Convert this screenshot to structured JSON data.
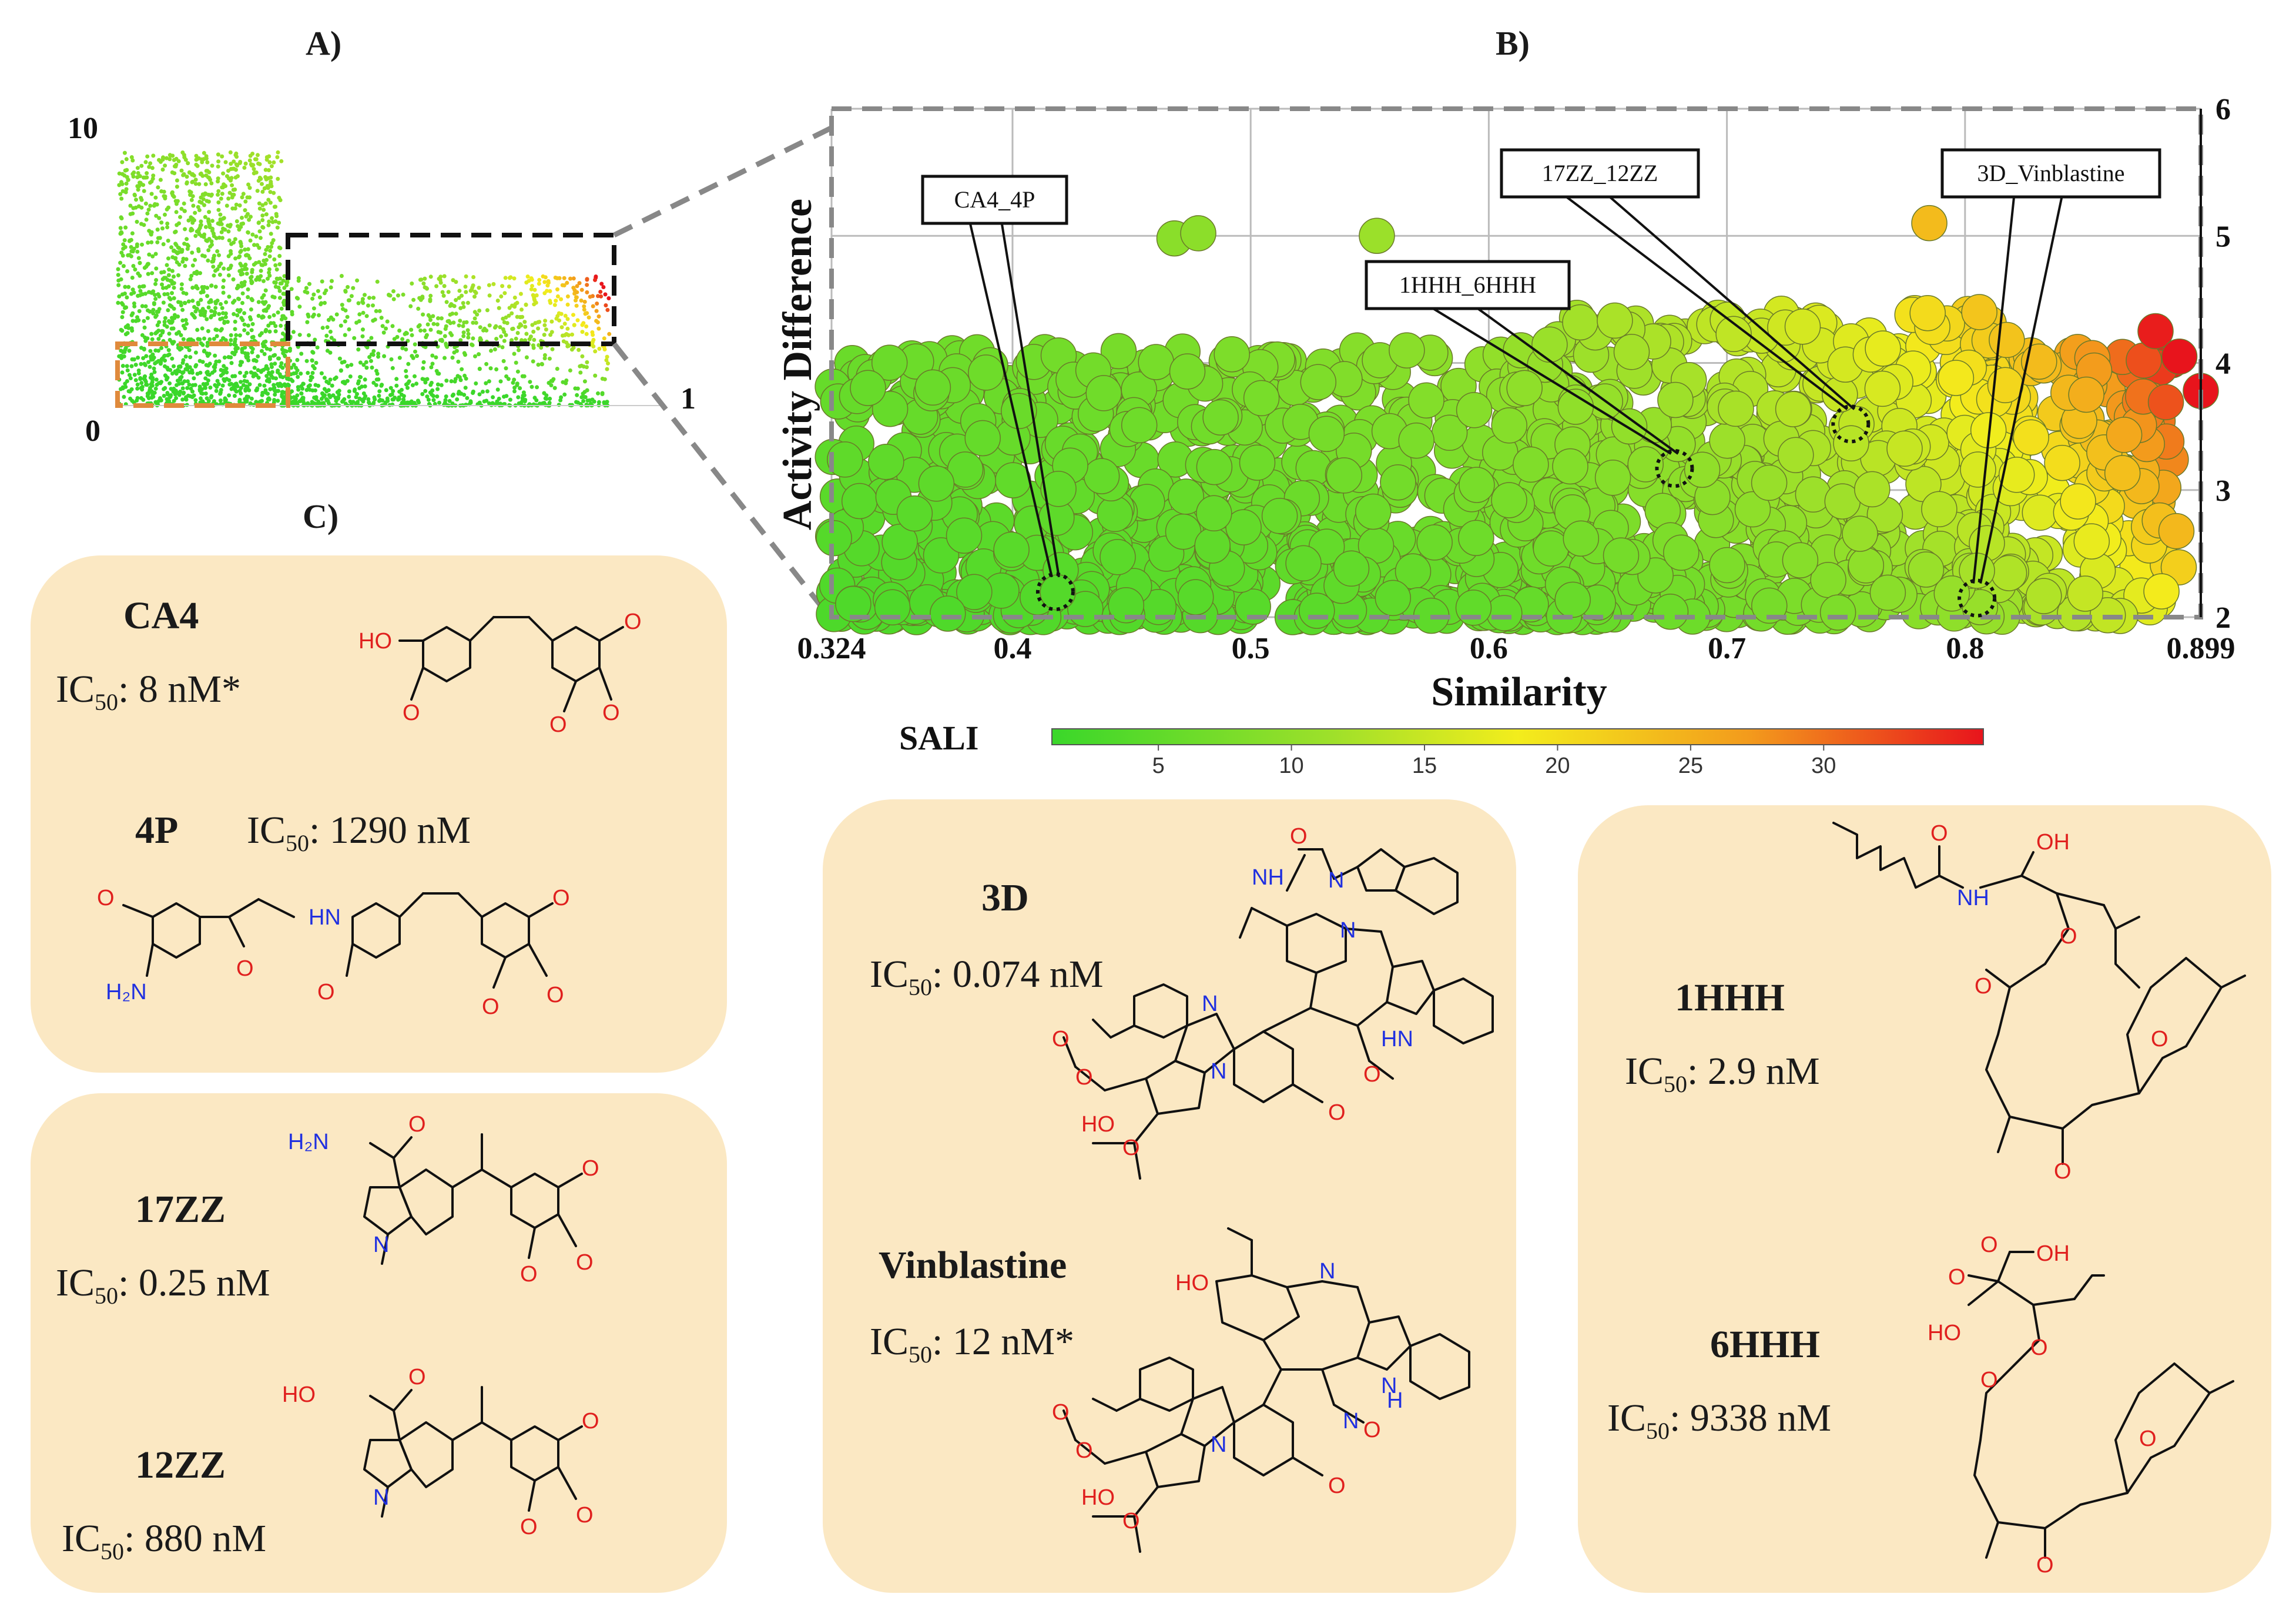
{
  "panels": {
    "a": "A)",
    "b": "B)",
    "c": "C)"
  },
  "overview": {
    "y_max_label": "10",
    "y_min_label": "0",
    "x_max_label": "1"
  },
  "chart_data": {
    "type": "scatter",
    "title": "",
    "xlabel": "Similarity",
    "ylabel": "Activity Difference",
    "xlim": [
      0.324,
      0.899
    ],
    "ylim": [
      2,
      6
    ],
    "x_ticks": [
      "0.324",
      "0.4",
      "0.5",
      "0.6",
      "0.7",
      "0.8",
      "0.899"
    ],
    "x_tick_values": [
      0.324,
      0.4,
      0.5,
      0.6,
      0.7,
      0.8,
      0.899
    ],
    "y_ticks": [
      "2",
      "3",
      "4",
      "5",
      "6"
    ],
    "y_tick_values": [
      2,
      3,
      4,
      5,
      6
    ],
    "grid": true,
    "colorbar": {
      "label": "SALI",
      "range": [
        1,
        36
      ],
      "ticks": [
        "5",
        "10",
        "15",
        "20",
        "25",
        "30"
      ],
      "tick_values": [
        5,
        10,
        15,
        20,
        25,
        30
      ]
    },
    "highlighted_pairs": [
      {
        "label": "CA4_4P",
        "x": 0.418,
        "y": 2.2
      },
      {
        "label": "1HHH_6HHH",
        "x": 0.678,
        "y": 3.17
      },
      {
        "label": "17ZZ_12ZZ",
        "x": 0.752,
        "y": 3.52
      },
      {
        "label": "3D_Vinblastine",
        "x": 0.805,
        "y": 2.15
      }
    ],
    "points_shown": 1500
  },
  "compounds": {
    "ca4": {
      "name": "CA4",
      "ic": "IC",
      "sub": "50",
      "value": ": 8 nM*"
    },
    "p4": {
      "name": "4P",
      "ic": "IC",
      "sub": "50",
      "value": ": 1290 nM"
    },
    "zz17": {
      "name": "17ZZ",
      "ic": "IC",
      "sub": "50",
      "value": ": 0.25 nM"
    },
    "zz12": {
      "name": "12ZZ",
      "ic": "IC",
      "sub": "50",
      "value": ": 880 nM"
    },
    "d3": {
      "name": "3D",
      "ic": "IC",
      "sub": "50",
      "value": ": 0.074 nM"
    },
    "vinb": {
      "name": "Vinblastine",
      "ic": "IC",
      "sub": "50",
      "value": ": 12 nM*"
    },
    "hhh1": {
      "name": "1HHH",
      "ic": "IC",
      "sub": "50",
      "value": ": 2.9 nM"
    },
    "hhh6": {
      "name": "6HHH",
      "ic": "IC",
      "sub": "50",
      "value": ": 9338 nM"
    }
  },
  "atoms": {
    "O": "O",
    "OH": "OH",
    "HO": "HO",
    "HN": "HN",
    "NH": "NH",
    "N": "N",
    "H2N": "H₂N",
    "H": "H"
  }
}
